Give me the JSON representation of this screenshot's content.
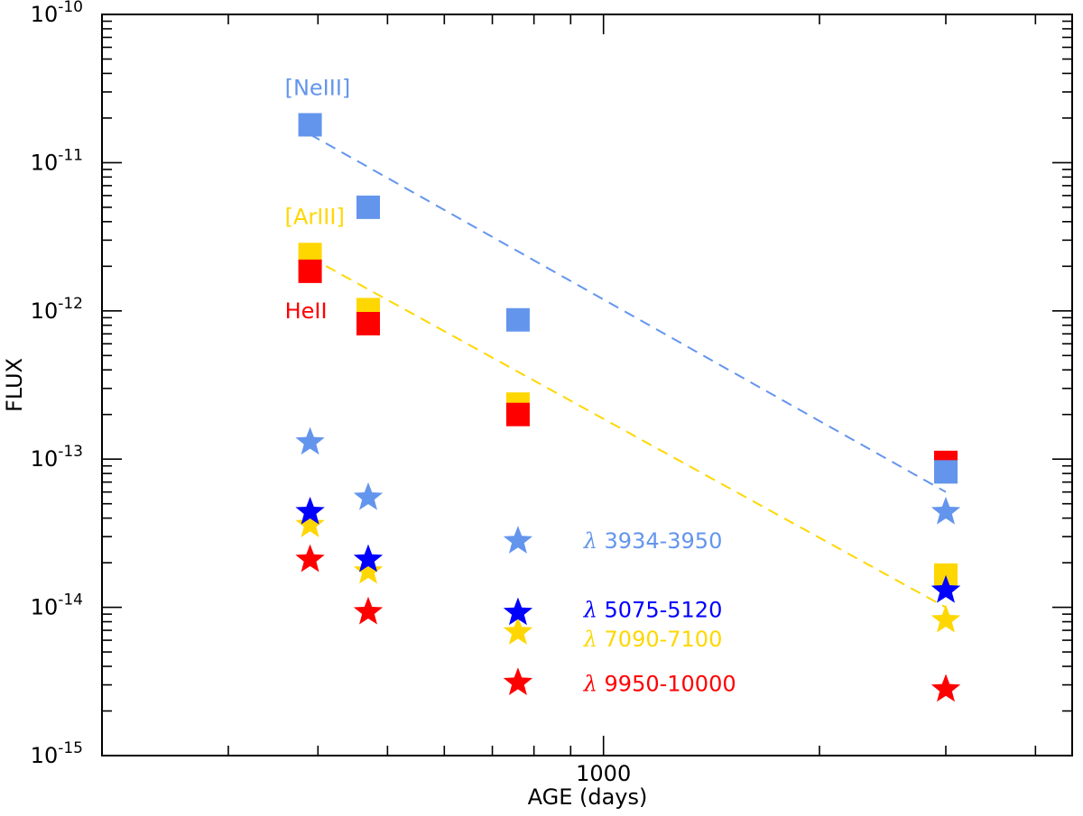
{
  "chart_data": {
    "type": "scatter",
    "xlabel": "AGE (days)",
    "ylabel": "FLUX",
    "x_scale": "log",
    "y_scale": "log",
    "xlim": [
      200,
      4500
    ],
    "ylim": [
      1e-15,
      1e-10
    ],
    "x_ticks": [
      {
        "value": 1000,
        "label": "1000"
      }
    ],
    "y_ticks": [
      {
        "value": 1e-15,
        "base": "10",
        "exp": "-15"
      },
      {
        "value": 1e-14,
        "base": "10",
        "exp": "-14"
      },
      {
        "value": 1e-13,
        "base": "10",
        "exp": "-13"
      },
      {
        "value": 1e-12,
        "base": "10",
        "exp": "-12"
      },
      {
        "value": 1e-11,
        "base": "10",
        "exp": "-11"
      },
      {
        "value": 1e-10,
        "base": "10",
        "exp": "-10"
      }
    ],
    "series": [
      {
        "name": "[ArIII]",
        "marker": "square",
        "color": "#ffd700",
        "x": [
          390,
          470,
          760,
          3000
        ],
        "y": [
          2.4e-12,
          1.02e-12,
          2.35e-13,
          1.65e-14
        ]
      },
      {
        "name": "HeII",
        "marker": "square",
        "color": "#ff0000",
        "x": [
          390,
          470,
          760,
          3000
        ],
        "y": [
          1.85e-12,
          8.2e-13,
          2e-13,
          9.5e-14
        ]
      },
      {
        "name": "[NeIII]",
        "marker": "square",
        "color": "#6495ed",
        "x": [
          390,
          470,
          760,
          3000
        ],
        "y": [
          1.8e-11,
          5e-12,
          8.7e-13,
          8.2e-14
        ]
      },
      {
        "name": "λ 3934-3950",
        "marker": "star",
        "color": "#6495ed",
        "x": [
          390,
          470,
          760,
          3000
        ],
        "y": [
          1.3e-13,
          5.5e-14,
          2.8e-14,
          4.4e-14
        ]
      },
      {
        "name": "λ 7090-7100",
        "marker": "star",
        "color": "#ffd700",
        "x": [
          390,
          470,
          760,
          3000
        ],
        "y": [
          3.6e-14,
          1.75e-14,
          6.8e-15,
          8.2e-15
        ]
      },
      {
        "name": "λ 5075-5120",
        "marker": "star",
        "color": "#0000ff",
        "x": [
          390,
          470,
          760,
          3000
        ],
        "y": [
          4.4e-14,
          2.1e-14,
          9.2e-15,
          1.3e-14
        ]
      },
      {
        "name": "λ 9950-10000",
        "marker": "star",
        "color": "#ff0000",
        "x": [
          390,
          470,
          760,
          3000
        ],
        "y": [
          2.1e-14,
          9.3e-15,
          3.1e-15,
          2.8e-15
        ]
      }
    ],
    "fit_lines": [
      {
        "name": "[NeIII] fit",
        "color": "#6495ed",
        "style": "dashed",
        "x": [
          390,
          3000
        ],
        "y": [
          1.55e-11,
          6e-14
        ]
      },
      {
        "name": "[ArIII] fit",
        "color": "#ffd700",
        "style": "dashed",
        "x": [
          390,
          3000
        ],
        "y": [
          2.3e-12,
          1e-14
        ]
      }
    ],
    "annotations": [
      {
        "text": "[NeIII]",
        "color": "#6495ed",
        "x": 390,
        "y": 3.2e-11,
        "italic": false
      },
      {
        "text": "[ArIII]",
        "color": "#ffd700",
        "x": 390,
        "y": 4.3e-12,
        "italic": false
      },
      {
        "text": "HeII",
        "color": "#ff0000",
        "x": 390,
        "y": 1e-12,
        "italic": false
      },
      {
        "text": "3934-3950",
        "prefix": "λ",
        "color": "#6495ed",
        "x": 1000,
        "y": 2.8e-14
      },
      {
        "text": "5075-5120",
        "prefix": "λ",
        "color": "#0000ff",
        "x": 1000,
        "y": 9.6e-15
      },
      {
        "text": "7090-7100",
        "prefix": "λ",
        "color": "#ffd700",
        "x": 1000,
        "y": 6.1e-15
      },
      {
        "text": "9950-10000",
        "prefix": "λ",
        "color": "#ff0000",
        "x": 1000,
        "y": 3.05e-15
      }
    ]
  }
}
